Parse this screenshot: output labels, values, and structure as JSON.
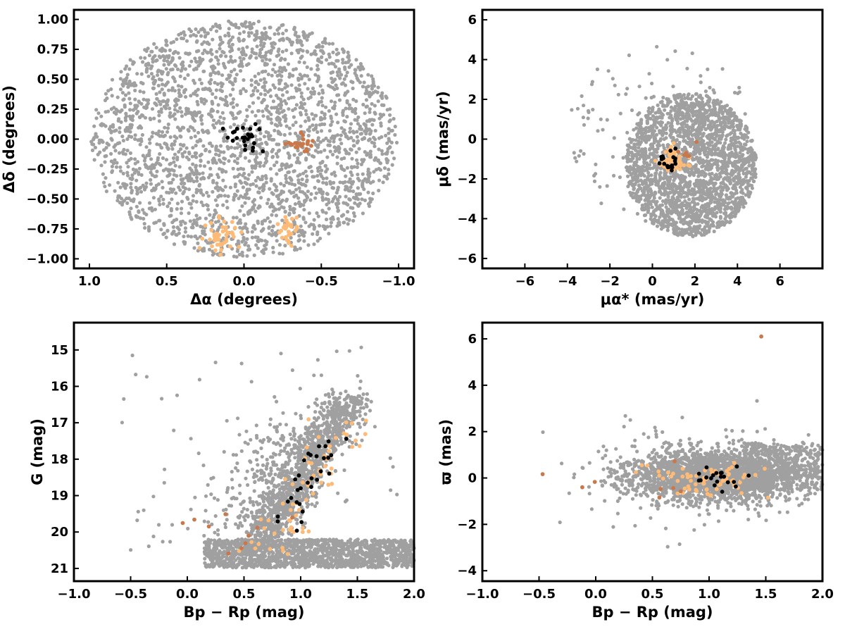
{
  "colors": {
    "field": "#a0a0a0",
    "member_black": "#000000",
    "member_light_orange": "#fdbb77",
    "member_dark_orange": "#c8784a"
  },
  "chart_data": [
    {
      "id": "sky",
      "type": "scatter",
      "xlabel": "Δα (degrees)",
      "ylabel": "Δδ (degrees)",
      "xlim": [
        1.1,
        -1.1
      ],
      "ylim": [
        -1.08,
        1.08
      ],
      "x_reversed": true,
      "xticks": [
        "1.0",
        "0.5",
        "0.0",
        "−0.5",
        "−1.0"
      ],
      "xtick_values": [
        1.0,
        0.5,
        0.0,
        -0.5,
        -1.0
      ],
      "yticks": [
        "−1.00",
        "−0.75",
        "−0.50",
        "−0.25",
        "0.00",
        "0.25",
        "0.50",
        "0.75",
        "1.00"
      ],
      "ytick_values": [
        -1.0,
        -0.75,
        -0.5,
        -0.25,
        0.0,
        0.25,
        0.5,
        0.75,
        1.0
      ],
      "grid": false,
      "groups": [
        {
          "color_key": "field",
          "count": 2600,
          "distribution": "circle",
          "center": [
            0.0,
            0.0
          ],
          "radius": [
            0.99,
            0.99
          ]
        },
        {
          "color_key": "member_black",
          "count": 26,
          "distribution": "cluster",
          "center": [
            0.0,
            0.02
          ],
          "spread": [
            0.07,
            0.05
          ]
        },
        {
          "color_key": "member_dark_orange",
          "count": 24,
          "distribution": "cluster",
          "center": [
            -0.38,
            -0.04
          ],
          "spread": [
            0.05,
            0.04
          ]
        },
        {
          "color_key": "member_light_orange",
          "count": 45,
          "distribution": "cluster",
          "center": [
            0.15,
            -0.82
          ],
          "spread": [
            0.06,
            0.07
          ]
        },
        {
          "color_key": "member_light_orange",
          "count": 30,
          "distribution": "cluster",
          "center": [
            -0.29,
            -0.75
          ],
          "spread": [
            0.04,
            0.06
          ]
        }
      ]
    },
    {
      "id": "proper-motion",
      "type": "scatter",
      "xlabel": "μα* (mas/yr)",
      "ylabel": "μδ (mas/yr)",
      "xlim": [
        -8.0,
        8.0
      ],
      "ylim": [
        -6.5,
        6.5
      ],
      "x_reversed": false,
      "xticks": [
        "−6",
        "−4",
        "−2",
        "0",
        "2",
        "4",
        "6"
      ],
      "xtick_values": [
        -6,
        -4,
        -2,
        0,
        2,
        4,
        6
      ],
      "yticks": [
        "−6",
        "−4",
        "−2",
        "0",
        "2",
        "4",
        "6"
      ],
      "ytick_values": [
        -6,
        -4,
        -2,
        0,
        2,
        4,
        6
      ],
      "grid": false,
      "groups": [
        {
          "color_key": "field",
          "count": 2300,
          "distribution": "circle",
          "center": [
            1.8,
            -1.3
          ],
          "radius": [
            3.1,
            3.6
          ]
        },
        {
          "color_key": "field",
          "count": 150,
          "distribution": "circle",
          "center": [
            0.3,
            0.2
          ],
          "radius": [
            4.5,
            4.5
          ]
        },
        {
          "color_key": "member_light_orange",
          "count": 70,
          "distribution": "cluster",
          "center": [
            0.9,
            -1.1
          ],
          "spread": [
            0.35,
            0.35
          ]
        },
        {
          "color_key": "member_black",
          "count": 18,
          "distribution": "cluster",
          "center": [
            0.8,
            -1.1
          ],
          "spread": [
            0.35,
            0.3
          ]
        },
        {
          "color_key": "member_dark_orange",
          "count": 6,
          "distribution": "cluster",
          "center": [
            1.5,
            -0.7
          ],
          "spread": [
            0.3,
            0.25
          ]
        }
      ]
    },
    {
      "id": "cmd",
      "type": "scatter",
      "xlabel": "Bp − Rp (mag)",
      "ylabel": "G (mag)",
      "xlim": [
        -1.0,
        2.0
      ],
      "ylim": [
        21.35,
        14.25
      ],
      "y_reversed": true,
      "xticks": [
        "−1.0",
        "−0.5",
        "0.0",
        "0.5",
        "1.0",
        "1.5",
        "2.0"
      ],
      "xtick_values": [
        -1.0,
        -0.5,
        0.0,
        0.5,
        1.0,
        1.5,
        2.0
      ],
      "yticks": [
        "15",
        "16",
        "17",
        "18",
        "19",
        "20",
        "21"
      ],
      "ytick_values": [
        15,
        16,
        17,
        18,
        19,
        20,
        21
      ],
      "grid": false,
      "groups": [
        {
          "color_key": "field",
          "count": 1500,
          "distribution": "band",
          "x": [
            0.15,
            2.0
          ],
          "y": [
            20.2,
            20.98
          ]
        },
        {
          "color_key": "field",
          "count": 1100,
          "distribution": "sequence",
          "x0": 0.65,
          "y0": 20.2,
          "x1": 1.45,
          "y1": 16.3,
          "width": 0.22
        },
        {
          "color_key": "field",
          "count": 300,
          "distribution": "sequence",
          "x0": 0.5,
          "y0": 20.0,
          "x1": 1.0,
          "y1": 17.0,
          "width": 0.45
        },
        {
          "color_key": "field",
          "count": 70,
          "distribution": "box",
          "x": [
            -0.6,
            1.9
          ],
          "y": [
            14.8,
            20.8
          ]
        },
        {
          "color_key": "member_light_orange",
          "count": 65,
          "distribution": "sequence",
          "x0": 0.7,
          "y0": 20.5,
          "x1": 1.45,
          "y1": 16.8,
          "width": 0.28
        },
        {
          "color_key": "member_black",
          "count": 30,
          "distribution": "sequence",
          "x0": 0.85,
          "y0": 19.8,
          "x1": 1.25,
          "y1": 17.5,
          "width": 0.18
        },
        {
          "color_key": "member_dark_orange",
          "count": 10,
          "distribution": "box",
          "x": [
            -0.1,
            1.0
          ],
          "y": [
            19.3,
            20.8
          ]
        }
      ]
    },
    {
      "id": "parallax",
      "type": "scatter",
      "xlabel": "Bp − Rp (mag)",
      "ylabel": "ϖ (mas)",
      "xlim": [
        -1.0,
        2.0
      ],
      "ylim": [
        -4.45,
        6.7
      ],
      "x_reversed": false,
      "xticks": [
        "−1.0",
        "−0.5",
        "0.0",
        "0.5",
        "1.0",
        "1.5",
        "2.0"
      ],
      "xtick_values": [
        -1.0,
        -0.5,
        0.0,
        0.5,
        1.0,
        1.5,
        2.0
      ],
      "yticks": [
        "−4",
        "−2",
        "0",
        "2",
        "4",
        "6"
      ],
      "ytick_values": [
        -4,
        -2,
        0,
        2,
        4,
        6
      ],
      "grid": false,
      "groups": [
        {
          "color_key": "field",
          "count": 2200,
          "distribution": "cluster",
          "center": [
            1.05,
            0.1
          ],
          "spread": [
            0.38,
            0.55
          ]
        },
        {
          "color_key": "field",
          "count": 400,
          "distribution": "band",
          "x": [
            1.3,
            2.0
          ],
          "y": [
            -0.5,
            1.5
          ]
        },
        {
          "color_key": "field",
          "count": 150,
          "distribution": "cluster",
          "center": [
            0.9,
            0.0
          ],
          "spread": [
            0.55,
            1.3
          ]
        },
        {
          "color_key": "member_light_orange",
          "count": 70,
          "distribution": "cluster",
          "center": [
            1.0,
            -0.05
          ],
          "spread": [
            0.22,
            0.35
          ]
        },
        {
          "color_key": "member_black",
          "count": 20,
          "distribution": "cluster",
          "center": [
            1.05,
            -0.1
          ],
          "spread": [
            0.12,
            0.25
          ]
        },
        {
          "color_key": "member_dark_orange",
          "count": 8,
          "distribution": "cluster",
          "center": [
            0.3,
            -0.1
          ],
          "spread": [
            0.35,
            0.4
          ]
        },
        {
          "color_key": "member_dark_orange",
          "count": 1,
          "distribution": "point",
          "center": [
            1.46,
            6.1
          ]
        }
      ]
    }
  ]
}
